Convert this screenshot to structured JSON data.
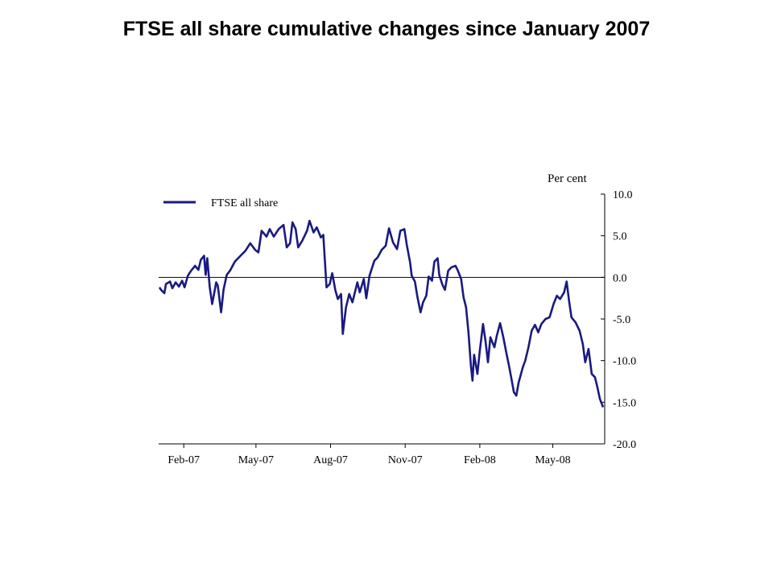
{
  "title": "FTSE all share cumulative changes since January 2007",
  "chart_data": {
    "type": "line",
    "title": "FTSE all share cumulative changes since January 2007",
    "ylabel": "Per cent",
    "xlabel": "",
    "ylim": [
      -20,
      10
    ],
    "y_ticks": [
      "10.0",
      "5.0",
      "0.0",
      "-5.0",
      "-10.0",
      "-15.0",
      "-20.0"
    ],
    "x_ticks": [
      "Feb-07",
      "May-07",
      "Aug-07",
      "Nov-07",
      "Feb-08",
      "May-08"
    ],
    "x_start": "2007-01-01",
    "x_end": "2008-07-04",
    "legend_position": "top-left",
    "grid": false,
    "zero_line": true,
    "color": "#1a1a80",
    "series": [
      {
        "name": "FTSE all share",
        "points": [
          [
            "2007-01-02",
            -1.2
          ],
          [
            "2007-01-04",
            -1.5
          ],
          [
            "2007-01-08",
            -1.9
          ],
          [
            "2007-01-10",
            -0.8
          ],
          [
            "2007-01-15",
            -0.5
          ],
          [
            "2007-01-18",
            -1.3
          ],
          [
            "2007-01-22",
            -0.6
          ],
          [
            "2007-01-26",
            -1.1
          ],
          [
            "2007-01-30",
            -0.4
          ],
          [
            "2007-02-02",
            -1.2
          ],
          [
            "2007-02-06",
            0.2
          ],
          [
            "2007-02-10",
            0.8
          ],
          [
            "2007-02-15",
            1.4
          ],
          [
            "2007-02-19",
            0.9
          ],
          [
            "2007-02-22",
            2.1
          ],
          [
            "2007-02-26",
            2.6
          ],
          [
            "2007-02-28",
            0.3
          ],
          [
            "2007-03-02",
            2.3
          ],
          [
            "2007-03-05",
            -1.2
          ],
          [
            "2007-03-08",
            -3.2
          ],
          [
            "2007-03-13",
            -0.6
          ],
          [
            "2007-03-15",
            -1.0
          ],
          [
            "2007-03-19",
            -4.2
          ],
          [
            "2007-03-22",
            -1.5
          ],
          [
            "2007-03-26",
            0.3
          ],
          [
            "2007-03-30",
            0.8
          ],
          [
            "2007-04-05",
            1.9
          ],
          [
            "2007-04-12",
            2.6
          ],
          [
            "2007-04-18",
            3.2
          ],
          [
            "2007-04-24",
            4.1
          ],
          [
            "2007-04-30",
            3.3
          ],
          [
            "2007-05-04",
            3.0
          ],
          [
            "2007-05-08",
            5.6
          ],
          [
            "2007-05-14",
            4.9
          ],
          [
            "2007-05-18",
            5.8
          ],
          [
            "2007-05-23",
            4.9
          ],
          [
            "2007-05-29",
            5.8
          ],
          [
            "2007-06-04",
            6.3
          ],
          [
            "2007-06-08",
            3.6
          ],
          [
            "2007-06-12",
            4.1
          ],
          [
            "2007-06-15",
            6.6
          ],
          [
            "2007-06-19",
            5.8
          ],
          [
            "2007-06-22",
            3.6
          ],
          [
            "2007-06-27",
            4.4
          ],
          [
            "2007-07-03",
            5.6
          ],
          [
            "2007-07-06",
            6.8
          ],
          [
            "2007-07-11",
            5.4
          ],
          [
            "2007-07-15",
            6.0
          ],
          [
            "2007-07-20",
            4.8
          ],
          [
            "2007-07-23",
            5.1
          ],
          [
            "2007-07-26",
            0.4
          ],
          [
            "2007-07-27",
            -1.2
          ],
          [
            "2007-07-31",
            -0.8
          ],
          [
            "2007-08-03",
            0.5
          ],
          [
            "2007-08-07",
            -1.6
          ],
          [
            "2007-08-10",
            -2.6
          ],
          [
            "2007-08-14",
            -2.0
          ],
          [
            "2007-08-16",
            -6.8
          ],
          [
            "2007-08-20",
            -3.6
          ],
          [
            "2007-08-24",
            -2.0
          ],
          [
            "2007-08-28",
            -3.0
          ],
          [
            "2007-09-03",
            -0.6
          ],
          [
            "2007-09-06",
            -1.8
          ],
          [
            "2007-09-11",
            -0.2
          ],
          [
            "2007-09-14",
            -2.5
          ],
          [
            "2007-09-18",
            0.2
          ],
          [
            "2007-09-24",
            2.0
          ],
          [
            "2007-09-28",
            2.4
          ],
          [
            "2007-10-03",
            3.3
          ],
          [
            "2007-10-08",
            3.8
          ],
          [
            "2007-10-12",
            5.9
          ],
          [
            "2007-10-17",
            4.2
          ],
          [
            "2007-10-22",
            3.4
          ],
          [
            "2007-10-26",
            5.6
          ],
          [
            "2007-10-31",
            5.8
          ],
          [
            "2007-11-03",
            3.9
          ],
          [
            "2007-11-07",
            1.8
          ],
          [
            "2007-11-09",
            0.2
          ],
          [
            "2007-11-13",
            -0.5
          ],
          [
            "2007-11-16",
            -2.3
          ],
          [
            "2007-11-20",
            -4.2
          ],
          [
            "2007-11-23",
            -3.0
          ],
          [
            "2007-11-27",
            -2.2
          ],
          [
            "2007-11-30",
            0.1
          ],
          [
            "2007-12-04",
            -0.4
          ],
          [
            "2007-12-07",
            1.9
          ],
          [
            "2007-12-11",
            2.3
          ],
          [
            "2007-12-13",
            0.3
          ],
          [
            "2007-12-17",
            -0.9
          ],
          [
            "2007-12-20",
            -1.5
          ],
          [
            "2007-12-24",
            0.8
          ],
          [
            "2007-12-28",
            1.2
          ],
          [
            "2008-01-02",
            1.4
          ],
          [
            "2008-01-05",
            0.8
          ],
          [
            "2008-01-09",
            -0.2
          ],
          [
            "2008-01-12",
            -2.4
          ],
          [
            "2008-01-15",
            -3.6
          ],
          [
            "2008-01-18",
            -6.6
          ],
          [
            "2008-01-21",
            -10.6
          ],
          [
            "2008-01-23",
            -12.4
          ],
          [
            "2008-01-25",
            -9.3
          ],
          [
            "2008-01-29",
            -11.6
          ],
          [
            "2008-02-01",
            -8.8
          ],
          [
            "2008-02-05",
            -5.6
          ],
          [
            "2008-02-08",
            -7.6
          ],
          [
            "2008-02-11",
            -10.2
          ],
          [
            "2008-02-14",
            -7.2
          ],
          [
            "2008-02-19",
            -8.4
          ],
          [
            "2008-02-22",
            -7.0
          ],
          [
            "2008-02-26",
            -5.5
          ],
          [
            "2008-03-01",
            -7.2
          ],
          [
            "2008-03-05",
            -9.2
          ],
          [
            "2008-03-08",
            -10.6
          ],
          [
            "2008-03-11",
            -12.2
          ],
          [
            "2008-03-14",
            -13.8
          ],
          [
            "2008-03-17",
            -14.2
          ],
          [
            "2008-03-20",
            -12.6
          ],
          [
            "2008-03-25",
            -10.8
          ],
          [
            "2008-03-28",
            -10.0
          ],
          [
            "2008-04-01",
            -8.4
          ],
          [
            "2008-04-05",
            -6.4
          ],
          [
            "2008-04-09",
            -5.7
          ],
          [
            "2008-04-13",
            -6.6
          ],
          [
            "2008-04-17",
            -5.6
          ],
          [
            "2008-04-22",
            -5.0
          ],
          [
            "2008-04-27",
            -4.8
          ],
          [
            "2008-05-02",
            -3.2
          ],
          [
            "2008-05-06",
            -2.2
          ],
          [
            "2008-05-10",
            -2.6
          ],
          [
            "2008-05-15",
            -1.8
          ],
          [
            "2008-05-18",
            -0.5
          ],
          [
            "2008-05-21",
            -2.8
          ],
          [
            "2008-05-24",
            -4.8
          ],
          [
            "2008-05-29",
            -5.4
          ],
          [
            "2008-06-03",
            -6.4
          ],
          [
            "2008-06-07",
            -8.0
          ],
          [
            "2008-06-10",
            -10.2
          ],
          [
            "2008-06-14",
            -8.6
          ],
          [
            "2008-06-18",
            -11.6
          ],
          [
            "2008-06-22",
            -12.0
          ],
          [
            "2008-06-25",
            -13.2
          ],
          [
            "2008-06-28",
            -14.6
          ],
          [
            "2008-07-02",
            -15.6
          ]
        ]
      }
    ]
  }
}
